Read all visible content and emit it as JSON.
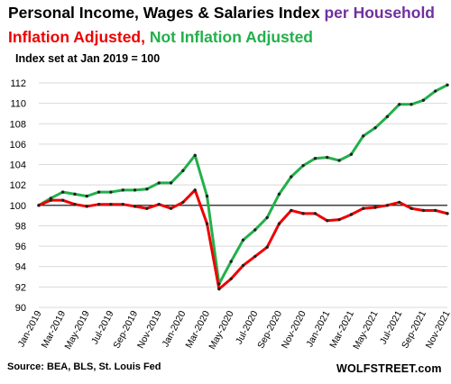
{
  "title": {
    "main": "Personal Income, Wages & Salaries Index",
    "highlight": "per Household",
    "series_red": "Inflation Adjusted,",
    "series_green": "Not Inflation Adjusted",
    "subtitle": "Index set at Jan 2019 = 100"
  },
  "source": "Source: BEA, BLS, St. Louis Fed",
  "brand": "WOLFSTREET.com",
  "colors": {
    "red": "#ee0000",
    "green": "#22b04a",
    "purple": "#7030a0",
    "grid": "#d9d9d9",
    "baseline": "#000000"
  },
  "chart_data": {
    "type": "line",
    "ylim": [
      90,
      112
    ],
    "yticks": [
      90,
      92,
      94,
      96,
      98,
      100,
      102,
      104,
      106,
      108,
      110,
      112
    ],
    "reference_line": 100,
    "x": [
      "Jan-2019",
      "Feb-2019",
      "Mar-2019",
      "Apr-2019",
      "May-2019",
      "Jun-2019",
      "Jul-2019",
      "Aug-2019",
      "Sep-2019",
      "Oct-2019",
      "Nov-2019",
      "Dec-2019",
      "Jan-2020",
      "Feb-2020",
      "Mar-2020",
      "Apr-2020",
      "May-2020",
      "Jun-2020",
      "Jul-2020",
      "Aug-2020",
      "Sep-2020",
      "Oct-2020",
      "Nov-2020",
      "Dec-2020",
      "Jan-2021",
      "Feb-2021",
      "Mar-2021",
      "Apr-2021",
      "May-2021",
      "Jun-2021",
      "Jul-2021",
      "Aug-2021",
      "Sep-2021",
      "Oct-2021",
      "Nov-2021"
    ],
    "xtick_labels": [
      "Jan-2019",
      "Mar-2019",
      "May-2019",
      "Jul-2019",
      "Sep-2019",
      "Nov-2019",
      "Jan-2020",
      "Mar-2020",
      "May-2020",
      "Jul-2020",
      "Sep-2020",
      "Nov-2020",
      "Jan-2021",
      "Mar-2021",
      "May-2021",
      "Jul-2021",
      "Sep-2021",
      "Nov-2021"
    ],
    "series": [
      {
        "name": "Not Inflation Adjusted",
        "color": "#22b04a",
        "values": [
          100.0,
          100.7,
          101.3,
          101.1,
          100.9,
          101.3,
          101.3,
          101.5,
          101.5,
          101.6,
          102.2,
          102.2,
          103.4,
          104.9,
          100.9,
          92.3,
          94.5,
          96.6,
          97.6,
          98.8,
          101.1,
          102.8,
          103.9,
          104.6,
          104.7,
          104.4,
          105.0,
          106.8,
          107.6,
          108.7,
          109.9,
          109.9,
          110.3,
          111.2,
          111.8
        ]
      },
      {
        "name": "Inflation Adjusted",
        "color": "#ee0000",
        "values": [
          100.0,
          100.5,
          100.5,
          100.1,
          99.9,
          100.1,
          100.1,
          100.1,
          99.9,
          99.7,
          100.1,
          99.7,
          100.3,
          101.5,
          98.2,
          91.8,
          92.8,
          94.1,
          95.0,
          95.9,
          98.2,
          99.5,
          99.2,
          99.2,
          98.5,
          98.6,
          99.1,
          99.7,
          99.8,
          100.0,
          100.3,
          99.7,
          99.5,
          99.5,
          99.2
        ]
      }
    ]
  }
}
